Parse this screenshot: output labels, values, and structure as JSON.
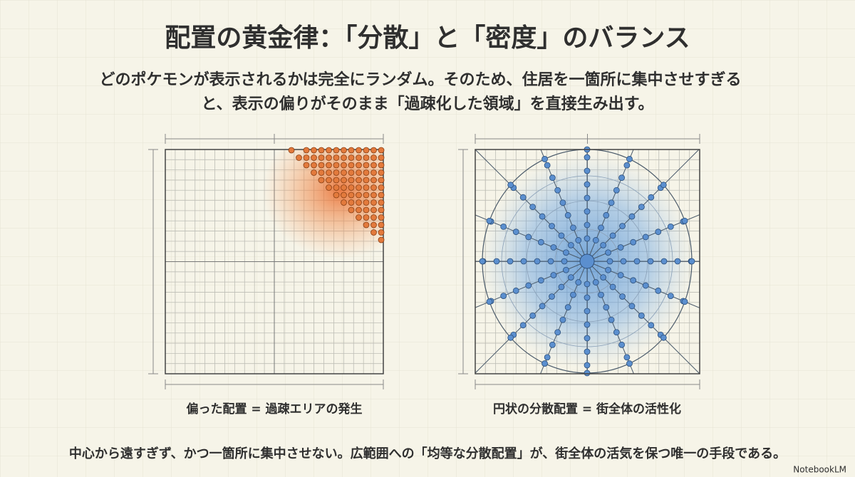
{
  "header": {
    "title": "配置の黄金律：「分散」と「密度」のバランス",
    "subtitle": [
      "どのポケモンが表示されるかは完全にランダム。そのため、住居を一箇所に集中させすぎる",
      "と、表示の偏りがそのまま「過疎化した領域」を直接生み出す。"
    ]
  },
  "panels": [
    {
      "caption": "偏った配置 = 過疎エリアの発生"
    },
    {
      "caption": "円状の分散配置 = 街全体の活性化"
    }
  ],
  "footer": "中心から遠すぎず、かつ一箇所に集中させない。広範囲への「均等な分散配置」が、街全体の活気を保つ唯一の手段である。",
  "brand": "NotebookLM"
}
